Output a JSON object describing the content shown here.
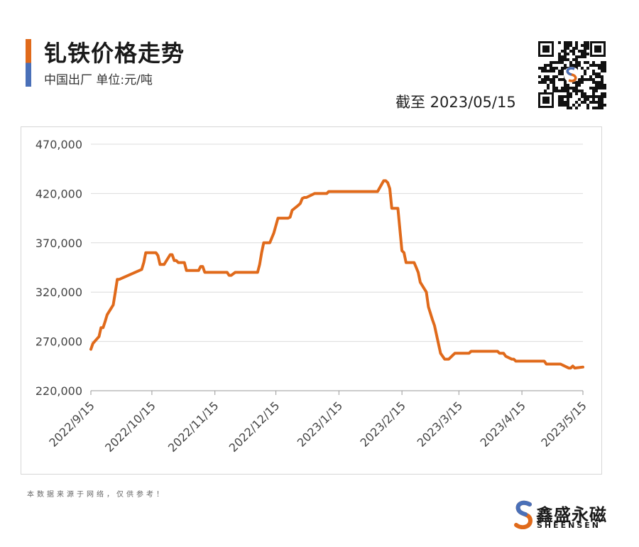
{
  "header": {
    "title": "钆铁价格走势",
    "subtitle": "中国出厂  单位:元/吨",
    "as_of": "截至 2023/05/15"
  },
  "footer": {
    "note": "本数据来源于网络，仅供参考！",
    "brand_cn": "鑫盛永磁",
    "brand_en": "SHEENSEN"
  },
  "colors": {
    "line": "#e06a1b",
    "grid": "#dcdcdc",
    "accent_orange": "#e06a1b",
    "accent_blue": "#4a70b8"
  },
  "chart_data": {
    "type": "line",
    "title": "钆铁价格走势",
    "xlabel": "",
    "ylabel": "",
    "ylim": [
      220000,
      470000
    ],
    "y_ticks": [
      220000,
      270000,
      320000,
      370000,
      420000,
      470000
    ],
    "y_tick_labels": [
      "220,000",
      "270,000",
      "320,000",
      "370,000",
      "420,000",
      "470,000"
    ],
    "x_range": [
      "2022-09-15",
      "2023-05-15"
    ],
    "x_ticks": [
      "2022-09-15",
      "2022-10-15",
      "2022-11-15",
      "2022-12-15",
      "2023-01-15",
      "2023-02-15",
      "2023-03-15",
      "2023-04-15",
      "2023-05-15"
    ],
    "x_tick_labels": [
      "2022/9/15",
      "2022/10/15",
      "2022/11/15",
      "2022/12/15",
      "2023/1/15",
      "2023/2/15",
      "2023/3/15",
      "2023/4/15",
      "2023/5/15"
    ],
    "grid": true,
    "legend": "none",
    "series": [
      {
        "x": [
          "2022-09-15",
          "2022-09-16",
          "2022-09-19",
          "2022-09-20",
          "2022-09-21",
          "2022-09-22",
          "2022-09-23",
          "2022-09-26",
          "2022-09-27",
          "2022-09-28",
          "2022-09-29",
          "2022-10-10",
          "2022-10-11",
          "2022-10-12",
          "2022-10-17",
          "2022-10-18",
          "2022-10-19",
          "2022-10-21",
          "2022-10-24",
          "2022-10-25",
          "2022-10-26",
          "2022-10-27",
          "2022-10-28",
          "2022-10-31",
          "2022-11-01",
          "2022-11-04",
          "2022-11-07",
          "2022-11-08",
          "2022-11-09",
          "2022-11-10",
          "2022-11-11",
          "2022-11-14",
          "2022-11-18",
          "2022-11-21",
          "2022-11-22",
          "2022-11-23",
          "2022-11-25",
          "2022-12-02",
          "2022-12-05",
          "2022-12-06",
          "2022-12-07",
          "2022-12-08",
          "2022-12-09",
          "2022-12-12",
          "2022-12-14",
          "2022-12-16",
          "2022-12-21",
          "2022-12-22",
          "2022-12-23",
          "2022-12-26",
          "2022-12-27",
          "2022-12-28",
          "2022-12-29",
          "2022-12-30",
          "2023-01-03",
          "2023-01-06",
          "2023-01-09",
          "2023-01-10",
          "2023-01-12",
          "2023-02-03",
          "2023-02-06",
          "2023-02-07",
          "2023-02-08",
          "2023-02-09",
          "2023-02-10",
          "2023-02-13",
          "2023-02-15",
          "2023-02-16",
          "2023-02-17",
          "2023-02-20",
          "2023-02-21",
          "2023-02-22",
          "2023-02-23",
          "2023-02-24",
          "2023-02-27",
          "2023-02-28",
          "2023-03-02",
          "2023-03-03",
          "2023-03-06",
          "2023-03-08",
          "2023-03-10",
          "2023-03-13",
          "2023-03-14",
          "2023-03-16",
          "2023-03-17",
          "2023-03-20",
          "2023-03-21",
          "2023-04-03",
          "2023-04-04",
          "2023-04-06",
          "2023-04-07",
          "2023-04-10",
          "2023-04-11",
          "2023-04-12",
          "2023-04-13",
          "2023-04-26",
          "2023-04-27",
          "2023-05-04",
          "2023-05-05",
          "2023-05-08",
          "2023-05-09",
          "2023-05-10",
          "2023-05-11",
          "2023-05-15"
        ],
        "values": [
          262000,
          268000,
          275000,
          284000,
          284000,
          290000,
          297000,
          307000,
          320000,
          333000,
          333000,
          343000,
          350000,
          360000,
          360000,
          357000,
          348000,
          348000,
          358000,
          358000,
          352000,
          352000,
          350000,
          350000,
          342000,
          342000,
          342000,
          346000,
          346000,
          340000,
          340000,
          340000,
          340000,
          340000,
          337000,
          337000,
          340000,
          340000,
          340000,
          340000,
          348000,
          360000,
          370000,
          370000,
          380000,
          395000,
          395000,
          396000,
          403000,
          408000,
          410000,
          415000,
          416000,
          416000,
          420000,
          420000,
          420000,
          422000,
          422000,
          422000,
          433000,
          433000,
          431000,
          425000,
          405000,
          405000,
          362000,
          360000,
          350000,
          350000,
          350000,
          345000,
          340000,
          330000,
          320000,
          305000,
          292000,
          286000,
          258000,
          252000,
          252000,
          258000,
          258000,
          258000,
          258000,
          258000,
          260000,
          260000,
          258000,
          258000,
          255000,
          252000,
          252000,
          250000,
          250000,
          250000,
          247000,
          247000,
          246000,
          243000,
          243000,
          245000,
          243000,
          244000
        ]
      }
    ]
  }
}
